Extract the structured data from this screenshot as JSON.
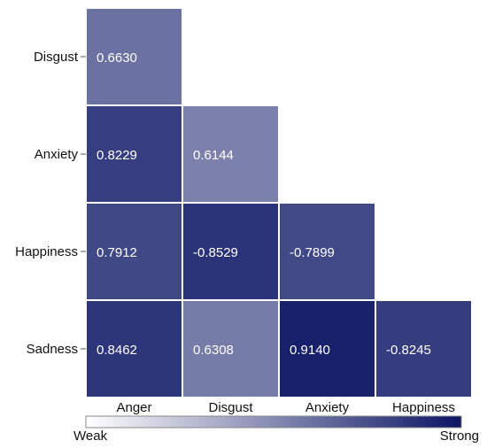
{
  "chart_data": {
    "type": "heatmap",
    "title": "",
    "xlabel": "",
    "ylabel": "",
    "x_categories": [
      "Anger",
      "Disgust",
      "Anxiety",
      "Happiness"
    ],
    "y_categories": [
      "Disgust",
      "Anxiety",
      "Happiness",
      "Sadness"
    ],
    "cells": [
      {
        "row": "Disgust",
        "col": "Anger",
        "value": 0.663,
        "label": "0.6630"
      },
      {
        "row": "Anxiety",
        "col": "Anger",
        "value": 0.8229,
        "label": "0.8229"
      },
      {
        "row": "Anxiety",
        "col": "Disgust",
        "value": 0.6144,
        "label": "0.6144"
      },
      {
        "row": "Happiness",
        "col": "Anger",
        "value": 0.7912,
        "label": "0.7912"
      },
      {
        "row": "Happiness",
        "col": "Disgust",
        "value": -0.8529,
        "label": "-0.8529"
      },
      {
        "row": "Happiness",
        "col": "Anxiety",
        "value": -0.7899,
        "label": "-0.7899"
      },
      {
        "row": "Sadness",
        "col": "Anger",
        "value": 0.8462,
        "label": "0.8462"
      },
      {
        "row": "Sadness",
        "col": "Disgust",
        "value": 0.6308,
        "label": "0.6308"
      },
      {
        "row": "Sadness",
        "col": "Anxiety",
        "value": 0.914,
        "label": "0.9140"
      },
      {
        "row": "Sadness",
        "col": "Happiness",
        "value": -0.8245,
        "label": "-0.8245"
      }
    ],
    "color_scale": {
      "low_label": "Weak",
      "high_label": "Strong",
      "low_color": "#ffffff",
      "high_color": "#0b1564",
      "strength_range": [
        0.55,
        0.95
      ]
    },
    "legend_position": "bottom",
    "grid": false
  }
}
